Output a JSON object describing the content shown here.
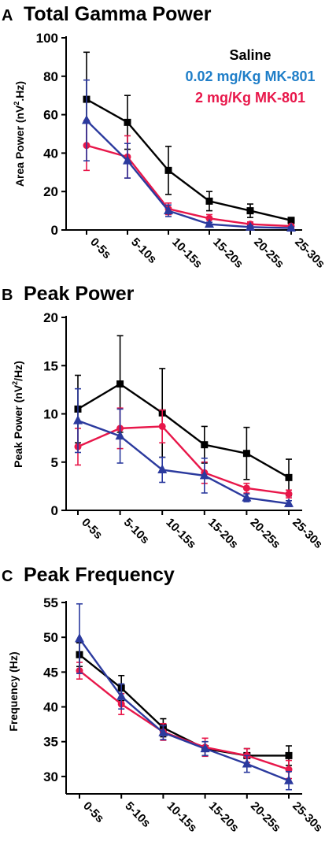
{
  "chart_data": [
    {
      "type": "line",
      "panel": "A",
      "title": "Total Gamma Power",
      "ylabel_main": "Area Power (nV",
      "ylabel_sup": "2",
      "ylabel_tail": ".Hz)",
      "xlabel": "",
      "categories": [
        "0-5s",
        "5-10s",
        "10-15s",
        "15-20s",
        "20-25s",
        "25-30s"
      ],
      "ylim": [
        0,
        100
      ],
      "yticks": [
        0,
        20,
        40,
        60,
        80,
        100
      ],
      "legend": [
        "Saline",
        "0.02 mg/Kg MK-801",
        "2 mg/Kg MK-801"
      ],
      "series": [
        {
          "name": "Saline",
          "color": "#000000",
          "marker": "square",
          "values": [
            68,
            56,
            31,
            15,
            10,
            5
          ],
          "errors": [
            24.5,
            14,
            12.5,
            5,
            3.5,
            1.5
          ]
        },
        {
          "name": "2 mg/Kg MK-801",
          "color": "#e8174a",
          "marker": "circle",
          "values": [
            44,
            38,
            11,
            6,
            3,
            2
          ],
          "errors": [
            13,
            11,
            3,
            2,
            1.2,
            0.8
          ]
        },
        {
          "name": "0.02 mg/Kg MK-801",
          "color": "#2b3a9e",
          "marker": "triangle",
          "values": [
            57,
            36,
            10,
            3,
            1.5,
            1
          ],
          "errors": [
            21,
            9,
            3,
            1,
            0.8,
            0.6
          ]
        }
      ]
    },
    {
      "type": "line",
      "panel": "B",
      "title": "Peak Power",
      "ylabel_main": "Peak Power (nV",
      "ylabel_sup": "2",
      "ylabel_tail": "/Hz)",
      "xlabel": "",
      "categories": [
        "0-5s",
        "5-10s",
        "10-15s",
        "15-20s",
        "20-25s",
        "25-30s"
      ],
      "ylim": [
        0,
        20
      ],
      "yticks": [
        0,
        5,
        10,
        15,
        20
      ],
      "series": [
        {
          "name": "Saline",
          "color": "#000000",
          "marker": "square",
          "values": [
            10.5,
            13.1,
            10.1,
            6.8,
            5.9,
            3.4
          ],
          "errors": [
            3.5,
            5.0,
            4.6,
            1.9,
            2.7,
            1.9
          ]
        },
        {
          "name": "2 mg/Kg MK-801",
          "color": "#e8174a",
          "marker": "circle",
          "values": [
            6.6,
            8.5,
            8.7,
            3.9,
            2.3,
            1.7
          ],
          "errors": [
            1.9,
            2.1,
            1.7,
            1.1,
            0.5,
            0.4
          ]
        },
        {
          "name": "0.02 mg/Kg MK-801",
          "color": "#2b3a9e",
          "marker": "triangle",
          "values": [
            9.3,
            7.7,
            4.2,
            3.6,
            1.3,
            0.7
          ],
          "errors": [
            3.3,
            2.8,
            1.3,
            1.8,
            0.4,
            0.3
          ]
        }
      ]
    },
    {
      "type": "line",
      "panel": "C",
      "title": "Peak Frequency",
      "ylabel_main": "Frequency (Hz)",
      "ylabel_sup": "",
      "ylabel_tail": "",
      "xlabel": "",
      "categories": [
        "0-5s",
        "5-10s",
        "10-15s",
        "15-20s",
        "20-25s",
        "25-30s"
      ],
      "ylim": [
        27.5,
        55
      ],
      "yticks": [
        30,
        35,
        40,
        45,
        50,
        55
      ],
      "series": [
        {
          "name": "Saline",
          "color": "#000000",
          "marker": "square",
          "values": [
            47.5,
            42.7,
            37.0,
            34.0,
            33.0,
            33.0
          ],
          "errors": [
            1.7,
            1.8,
            1.3,
            1.0,
            1.0,
            1.4
          ]
        },
        {
          "name": "2 mg/Kg MK-801",
          "color": "#e8174a",
          "marker": "circle",
          "values": [
            45.2,
            40.4,
            36.4,
            34.2,
            33.0,
            31.0
          ],
          "errors": [
            1.2,
            1.5,
            1.2,
            1.3,
            1.0,
            1.3
          ]
        },
        {
          "name": "0.02 mg/Kg MK-801",
          "color": "#2b3a9e",
          "marker": "triangle",
          "values": [
            49.8,
            41.5,
            36.3,
            34.0,
            31.8,
            29.4
          ],
          "errors": [
            5.0,
            1.8,
            1.0,
            1.0,
            1.2,
            1.3
          ]
        }
      ]
    }
  ]
}
